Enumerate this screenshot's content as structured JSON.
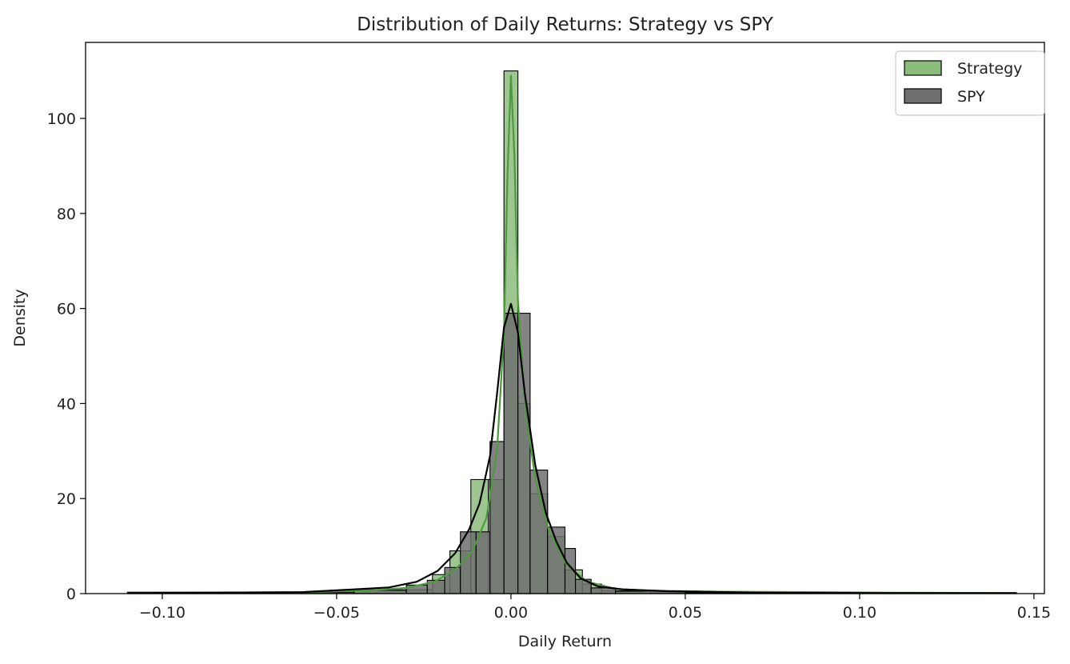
{
  "chart_data": {
    "type": "bar",
    "subtype": "histogram-with-kde",
    "title": "Distribution of Daily Returns: Strategy vs SPY",
    "xlabel": "Daily Return",
    "ylabel": "Density",
    "xlim": [
      -0.122,
      0.153
    ],
    "ylim": [
      0,
      116
    ],
    "xticks": [
      -0.1,
      -0.05,
      0.0,
      0.05,
      0.1,
      0.15
    ],
    "xtick_labels": [
      "−0.10",
      "−0.05",
      "0.00",
      "0.05",
      "0.10",
      "0.15"
    ],
    "yticks": [
      0,
      20,
      40,
      60,
      80,
      100
    ],
    "ytick_labels": [
      "0",
      "20",
      "40",
      "60",
      "80",
      "100"
    ],
    "grid": false,
    "legend_position": "top-right",
    "series": [
      {
        "name": "Strategy",
        "color": "#4f9a3e",
        "fill_color": "#8cbc7c",
        "bins": [
          {
            "x0": -0.11,
            "x1": -0.045,
            "value": 0.2
          },
          {
            "x0": -0.045,
            "x1": -0.0225,
            "value": 0.8
          },
          {
            "x0": -0.0225,
            "x1": -0.0175,
            "value": 4
          },
          {
            "x0": -0.0175,
            "x1": -0.0115,
            "value": 9
          },
          {
            "x0": -0.0115,
            "x1": -0.0065,
            "value": 24
          },
          {
            "x0": -0.0065,
            "x1": -0.002,
            "value": 24
          },
          {
            "x0": -0.002,
            "x1": 0.002,
            "value": 110
          },
          {
            "x0": 0.002,
            "x1": 0.0055,
            "value": 40
          },
          {
            "x0": 0.0055,
            "x1": 0.0105,
            "value": 21
          },
          {
            "x0": 0.0105,
            "x1": 0.0155,
            "value": 12
          },
          {
            "x0": 0.0155,
            "x1": 0.0205,
            "value": 5
          },
          {
            "x0": 0.0205,
            "x1": 0.026,
            "value": 2
          },
          {
            "x0": 0.026,
            "x1": 0.04,
            "value": 0.6
          },
          {
            "x0": 0.04,
            "x1": 0.145,
            "value": 0.15
          }
        ],
        "kde": {
          "x": [
            -0.11,
            -0.06,
            -0.04,
            -0.03,
            -0.022,
            -0.016,
            -0.011,
            -0.007,
            -0.004,
            -0.002,
            -0.001,
            0.0,
            0.001,
            0.002,
            0.004,
            0.007,
            0.011,
            0.016,
            0.022,
            0.03,
            0.04,
            0.06,
            0.09,
            0.11,
            0.145
          ],
          "y": [
            0.1,
            0.3,
            0.7,
            1.2,
            2.5,
            5,
            9,
            16,
            30,
            55,
            88,
            109,
            92,
            62,
            40,
            24,
            13,
            6,
            2.5,
            1.0,
            0.6,
            0.4,
            0.3,
            0.2,
            0.1
          ]
        }
      },
      {
        "name": "SPY",
        "color": "#000000",
        "fill_color": "#6f6f6f",
        "bins": [
          {
            "x0": -0.11,
            "x1": -0.045,
            "value": 0.3
          },
          {
            "x0": -0.045,
            "x1": -0.03,
            "value": 0.7
          },
          {
            "x0": -0.03,
            "x1": -0.024,
            "value": 1.8
          },
          {
            "x0": -0.024,
            "x1": -0.019,
            "value": 2.8
          },
          {
            "x0": -0.019,
            "x1": -0.0145,
            "value": 5.5
          },
          {
            "x0": -0.0145,
            "x1": -0.01,
            "value": 13
          },
          {
            "x0": -0.01,
            "x1": -0.006,
            "value": 13
          },
          {
            "x0": -0.006,
            "x1": -0.002,
            "value": 32
          },
          {
            "x0": -0.002,
            "x1": 0.002,
            "value": 59
          },
          {
            "x0": 0.002,
            "x1": 0.0055,
            "value": 59
          },
          {
            "x0": 0.0055,
            "x1": 0.0105,
            "value": 26
          },
          {
            "x0": 0.0105,
            "x1": 0.0155,
            "value": 14
          },
          {
            "x0": 0.0155,
            "x1": 0.0185,
            "value": 9.5
          },
          {
            "x0": 0.0185,
            "x1": 0.023,
            "value": 3
          },
          {
            "x0": 0.023,
            "x1": 0.03,
            "value": 1.2
          },
          {
            "x0": 0.03,
            "x1": 0.05,
            "value": 0.5
          },
          {
            "x0": 0.05,
            "x1": 0.145,
            "value": 0.15
          }
        ],
        "kde": {
          "x": [
            -0.11,
            -0.06,
            -0.045,
            -0.035,
            -0.027,
            -0.021,
            -0.016,
            -0.012,
            -0.009,
            -0.006,
            -0.004,
            -0.002,
            0.0,
            0.002,
            0.004,
            0.007,
            0.01,
            0.013,
            0.016,
            0.02,
            0.025,
            0.032,
            0.045,
            0.07,
            0.11,
            0.145
          ],
          "y": [
            0.1,
            0.3,
            0.9,
            1.3,
            2.5,
            4.8,
            8.5,
            13.5,
            19,
            29,
            42,
            56,
            61,
            55,
            42,
            27,
            17,
            11,
            6.5,
            3.2,
            1.5,
            0.9,
            0.5,
            0.2,
            0.1,
            0.1
          ]
        }
      }
    ]
  }
}
